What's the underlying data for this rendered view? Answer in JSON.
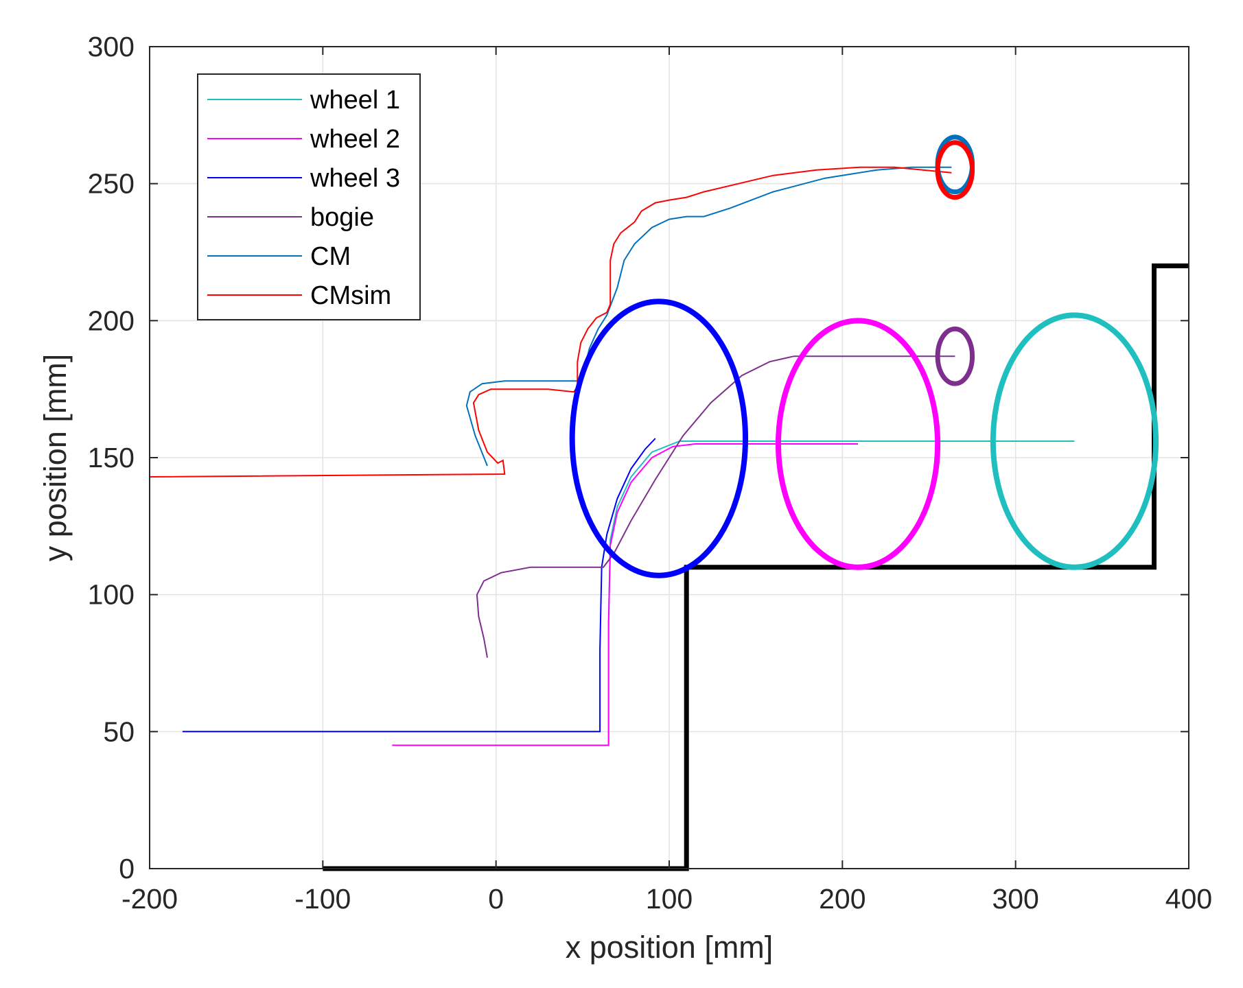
{
  "chart_data": {
    "type": "line",
    "title": "",
    "xlabel": "x position [mm]",
    "ylabel": "y position [mm]",
    "xlim": [
      -200,
      400
    ],
    "ylim": [
      0,
      300
    ],
    "xticks": [
      -200,
      -100,
      0,
      100,
      200,
      300,
      400
    ],
    "yticks": [
      0,
      50,
      100,
      150,
      200,
      250,
      300
    ],
    "grid": true,
    "legend_position": "top-left",
    "series": [
      {
        "name": "wheel 1",
        "color": "#1FBFBF",
        "points": [
          [
            65,
            45
          ],
          [
            65,
            90
          ],
          [
            66,
            120
          ],
          [
            70,
            132
          ],
          [
            78,
            143
          ],
          [
            90,
            152
          ],
          [
            106,
            156
          ],
          [
            120,
            156
          ],
          [
            200,
            156
          ],
          [
            334,
            156
          ]
        ],
        "marker": {
          "cx": 334,
          "cy": 156,
          "rx": 47,
          "ry": 46
        }
      },
      {
        "name": "wheel 2",
        "color": "#FF00FF",
        "points": [
          [
            -60,
            45
          ],
          [
            65,
            45
          ],
          [
            65,
            90
          ],
          [
            66,
            118
          ],
          [
            70,
            130
          ],
          [
            78,
            141
          ],
          [
            90,
            150
          ],
          [
            102,
            154
          ],
          [
            115,
            155
          ],
          [
            209,
            155
          ]
        ],
        "marker": {
          "cx": 209,
          "cy": 155,
          "rx": 46,
          "ry": 45
        }
      },
      {
        "name": "wheel 3",
        "color": "#0000FF",
        "points": [
          [
            -181,
            50
          ],
          [
            60,
            50
          ],
          [
            60,
            80
          ],
          [
            61,
            110
          ],
          [
            64,
            122
          ],
          [
            70,
            135
          ],
          [
            78,
            146
          ],
          [
            86,
            153
          ],
          [
            92,
            157
          ]
        ],
        "marker": {
          "cx": 94,
          "cy": 157,
          "rx": 50,
          "ry": 50
        }
      },
      {
        "name": "bogie",
        "color": "#7E2F8E",
        "points": [
          [
            -5,
            77
          ],
          [
            -7,
            84
          ],
          [
            -10,
            92
          ],
          [
            -11,
            100
          ],
          [
            -7,
            105
          ],
          [
            3,
            108
          ],
          [
            20,
            110
          ],
          [
            40,
            110
          ],
          [
            62,
            110
          ],
          [
            68,
            115
          ],
          [
            78,
            127
          ],
          [
            92,
            142
          ],
          [
            108,
            158
          ],
          [
            124,
            170
          ],
          [
            142,
            180
          ],
          [
            158,
            185
          ],
          [
            172,
            187
          ],
          [
            265,
            187
          ]
        ],
        "marker": {
          "cx": 265,
          "cy": 187,
          "rx": 10,
          "ry": 10
        }
      },
      {
        "name": "CM",
        "color": "#0072BD",
        "points": [
          [
            -5,
            147
          ],
          [
            -12,
            158
          ],
          [
            -17,
            169
          ],
          [
            -15,
            174
          ],
          [
            -8,
            177
          ],
          [
            5,
            178
          ],
          [
            47,
            178
          ],
          [
            50,
            180
          ],
          [
            54,
            190
          ],
          [
            59,
            197
          ],
          [
            64,
            202
          ],
          [
            70,
            212
          ],
          [
            74,
            222
          ],
          [
            80,
            228
          ],
          [
            90,
            234
          ],
          [
            100,
            237
          ],
          [
            110,
            238
          ],
          [
            120,
            238
          ],
          [
            135,
            241
          ],
          [
            160,
            247
          ],
          [
            190,
            252
          ],
          [
            220,
            255
          ],
          [
            240,
            256
          ],
          [
            263,
            256
          ]
        ],
        "marker": {
          "cx": 265,
          "cy": 257,
          "rx": 10,
          "ry": 10
        }
      },
      {
        "name": "CMsim",
        "color": "#FF0000",
        "points": [
          [
            -200,
            143
          ],
          [
            5,
            144
          ],
          [
            4,
            149
          ],
          [
            1,
            148
          ],
          [
            -5,
            152
          ],
          [
            -10,
            160
          ],
          [
            -13,
            170
          ],
          [
            -10,
            173
          ],
          [
            -3,
            175
          ],
          [
            10,
            175
          ],
          [
            30,
            175
          ],
          [
            45,
            174
          ],
          [
            47,
            176
          ],
          [
            47,
            185
          ],
          [
            49,
            192
          ],
          [
            53,
            197
          ],
          [
            58,
            201
          ],
          [
            64,
            203
          ],
          [
            66,
            206
          ],
          [
            66,
            222
          ],
          [
            68,
            228
          ],
          [
            72,
            232
          ],
          [
            76,
            234
          ],
          [
            80,
            236
          ],
          [
            84,
            240
          ],
          [
            92,
            243
          ],
          [
            100,
            244
          ],
          [
            110,
            245
          ],
          [
            120,
            247
          ],
          [
            140,
            250
          ],
          [
            160,
            253
          ],
          [
            185,
            255
          ],
          [
            210,
            256
          ],
          [
            230,
            256
          ],
          [
            263,
            254
          ]
        ],
        "marker": {
          "cx": 265,
          "cy": 255,
          "rx": 10,
          "ry": 10
        }
      },
      {
        "name": "",
        "color": "#000000",
        "points": [
          [
            -100,
            0
          ],
          [
            110,
            0
          ],
          [
            110,
            110
          ],
          [
            380,
            110
          ],
          [
            380,
            220
          ],
          [
            400,
            220
          ]
        ]
      }
    ]
  },
  "legend": {
    "items": [
      {
        "label": "wheel 1",
        "color": "#1FBFBF"
      },
      {
        "label": "wheel 2",
        "color": "#FF00FF"
      },
      {
        "label": "wheel 3",
        "color": "#0000FF"
      },
      {
        "label": "bogie",
        "color": "#7E2F8E"
      },
      {
        "label": "CM",
        "color": "#0072BD"
      },
      {
        "label": "CMsim",
        "color": "#FF0000"
      }
    ]
  }
}
